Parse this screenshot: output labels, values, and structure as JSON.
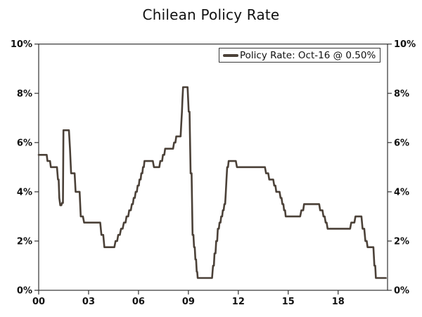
{
  "chart_data": {
    "type": "line",
    "title": "Chilean Policy Rate",
    "legend_label": "Policy Rate: Oct-16 @ 0.50%",
    "legend_position": "top-right",
    "grid": false,
    "xlabel": "",
    "ylabel": "",
    "xlim": [
      2000,
      2020.97
    ],
    "ylim": [
      0,
      10
    ],
    "x_ticks": {
      "values": [
        2000,
        2003,
        2006,
        2009,
        2012,
        2015,
        2018
      ],
      "labels": [
        "00",
        "03",
        "06",
        "09",
        "12",
        "15",
        "18"
      ]
    },
    "y_ticks": {
      "values": [
        0,
        2,
        4,
        6,
        8,
        10
      ],
      "labels": [
        "0%",
        "2%",
        "4%",
        "6%",
        "8%",
        "10%"
      ]
    },
    "colors": {
      "line": "#4b4138",
      "axis": "#333333",
      "text": "#111111",
      "background": "#ffffff",
      "legend_border": "#3a3a3a"
    },
    "series": [
      {
        "name": "Policy Rate",
        "points": [
          [
            2000.0,
            5.5
          ],
          [
            2000.48,
            5.5
          ],
          [
            2000.53,
            5.25
          ],
          [
            2000.68,
            5.25
          ],
          [
            2000.73,
            5.0
          ],
          [
            2001.1,
            5.0
          ],
          [
            2001.16,
            4.5
          ],
          [
            2001.2,
            4.5
          ],
          [
            2001.24,
            3.75
          ],
          [
            2001.3,
            3.45
          ],
          [
            2001.36,
            3.45
          ],
          [
            2001.41,
            3.55
          ],
          [
            2001.46,
            3.55
          ],
          [
            2001.49,
            6.5
          ],
          [
            2001.82,
            6.5
          ],
          [
            2001.88,
            5.75
          ],
          [
            2001.95,
            4.75
          ],
          [
            2002.16,
            4.75
          ],
          [
            2002.22,
            4.0
          ],
          [
            2002.46,
            4.0
          ],
          [
            2002.53,
            3.0
          ],
          [
            2002.66,
            3.0
          ],
          [
            2002.73,
            2.75
          ],
          [
            2003.7,
            2.75
          ],
          [
            2003.77,
            2.25
          ],
          [
            2003.88,
            2.25
          ],
          [
            2003.95,
            1.75
          ],
          [
            2004.55,
            1.75
          ],
          [
            2004.62,
            2.0
          ],
          [
            2004.72,
            2.0
          ],
          [
            2004.78,
            2.25
          ],
          [
            2004.88,
            2.25
          ],
          [
            2004.95,
            2.5
          ],
          [
            2005.05,
            2.5
          ],
          [
            2005.12,
            2.75
          ],
          [
            2005.22,
            2.75
          ],
          [
            2005.28,
            3.0
          ],
          [
            2005.38,
            3.0
          ],
          [
            2005.44,
            3.25
          ],
          [
            2005.54,
            3.25
          ],
          [
            2005.6,
            3.5
          ],
          [
            2005.66,
            3.5
          ],
          [
            2005.71,
            3.75
          ],
          [
            2005.78,
            3.75
          ],
          [
            2005.83,
            4.0
          ],
          [
            2005.9,
            4.0
          ],
          [
            2005.95,
            4.25
          ],
          [
            2006.02,
            4.25
          ],
          [
            2006.06,
            4.5
          ],
          [
            2006.13,
            4.5
          ],
          [
            2006.17,
            4.75
          ],
          [
            2006.23,
            4.75
          ],
          [
            2006.27,
            5.0
          ],
          [
            2006.32,
            5.0
          ],
          [
            2006.36,
            5.25
          ],
          [
            2006.86,
            5.25
          ],
          [
            2006.93,
            5.0
          ],
          [
            2007.25,
            5.0
          ],
          [
            2007.31,
            5.25
          ],
          [
            2007.42,
            5.25
          ],
          [
            2007.47,
            5.5
          ],
          [
            2007.55,
            5.5
          ],
          [
            2007.6,
            5.75
          ],
          [
            2008.08,
            5.75
          ],
          [
            2008.14,
            6.0
          ],
          [
            2008.22,
            6.0
          ],
          [
            2008.27,
            6.25
          ],
          [
            2008.53,
            6.25
          ],
          [
            2008.57,
            6.75
          ],
          [
            2008.61,
            7.25
          ],
          [
            2008.64,
            7.75
          ],
          [
            2008.68,
            8.25
          ],
          [
            2008.95,
            8.25
          ],
          [
            2009.02,
            7.25
          ],
          [
            2009.07,
            7.25
          ],
          [
            2009.13,
            4.75
          ],
          [
            2009.19,
            4.75
          ],
          [
            2009.25,
            2.25
          ],
          [
            2009.3,
            2.25
          ],
          [
            2009.34,
            1.75
          ],
          [
            2009.38,
            1.75
          ],
          [
            2009.42,
            1.25
          ],
          [
            2009.46,
            1.25
          ],
          [
            2009.5,
            0.75
          ],
          [
            2009.53,
            0.75
          ],
          [
            2009.56,
            0.5
          ],
          [
            2010.42,
            0.5
          ],
          [
            2010.48,
            1.0
          ],
          [
            2010.53,
            1.0
          ],
          [
            2010.57,
            1.5
          ],
          [
            2010.63,
            1.5
          ],
          [
            2010.67,
            2.0
          ],
          [
            2010.73,
            2.0
          ],
          [
            2010.77,
            2.5
          ],
          [
            2010.83,
            2.5
          ],
          [
            2010.87,
            2.75
          ],
          [
            2010.93,
            2.75
          ],
          [
            2010.97,
            3.0
          ],
          [
            2011.03,
            3.0
          ],
          [
            2011.07,
            3.25
          ],
          [
            2011.12,
            3.25
          ],
          [
            2011.16,
            3.5
          ],
          [
            2011.21,
            3.5
          ],
          [
            2011.25,
            4.0
          ],
          [
            2011.29,
            4.5
          ],
          [
            2011.33,
            5.0
          ],
          [
            2011.38,
            5.0
          ],
          [
            2011.42,
            5.25
          ],
          [
            2011.85,
            5.25
          ],
          [
            2011.92,
            5.0
          ],
          [
            2013.6,
            5.0
          ],
          [
            2013.67,
            4.75
          ],
          [
            2013.8,
            4.75
          ],
          [
            2013.86,
            4.5
          ],
          [
            2014.1,
            4.5
          ],
          [
            2014.16,
            4.25
          ],
          [
            2014.23,
            4.25
          ],
          [
            2014.28,
            4.0
          ],
          [
            2014.48,
            4.0
          ],
          [
            2014.54,
            3.75
          ],
          [
            2014.6,
            3.75
          ],
          [
            2014.65,
            3.5
          ],
          [
            2014.71,
            3.5
          ],
          [
            2014.75,
            3.25
          ],
          [
            2014.81,
            3.25
          ],
          [
            2014.85,
            3.0
          ],
          [
            2015.72,
            3.0
          ],
          [
            2015.79,
            3.25
          ],
          [
            2015.9,
            3.25
          ],
          [
            2015.95,
            3.5
          ],
          [
            2016.86,
            3.5
          ],
          [
            2016.92,
            3.25
          ],
          [
            2017.06,
            3.25
          ],
          [
            2017.12,
            3.0
          ],
          [
            2017.19,
            3.0
          ],
          [
            2017.25,
            2.75
          ],
          [
            2017.31,
            2.75
          ],
          [
            2017.37,
            2.5
          ],
          [
            2018.72,
            2.5
          ],
          [
            2018.79,
            2.75
          ],
          [
            2018.98,
            2.75
          ],
          [
            2019.04,
            3.0
          ],
          [
            2019.4,
            3.0
          ],
          [
            2019.47,
            2.5
          ],
          [
            2019.57,
            2.5
          ],
          [
            2019.64,
            2.0
          ],
          [
            2019.72,
            2.0
          ],
          [
            2019.77,
            1.75
          ],
          [
            2020.12,
            1.75
          ],
          [
            2020.18,
            1.0
          ],
          [
            2020.23,
            1.0
          ],
          [
            2020.27,
            0.5
          ],
          [
            2020.87,
            0.5
          ]
        ]
      }
    ]
  }
}
